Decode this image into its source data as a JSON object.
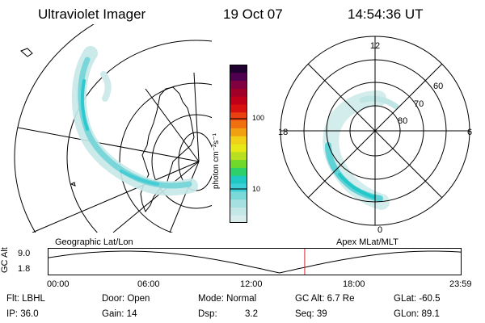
{
  "header": {
    "instrument": "Ultraviolet Imager",
    "date": "19 Oct 07",
    "time": "14:54:36 UT"
  },
  "colorbar": {
    "unit_label": "photon cm⁻²s⁻¹",
    "ticks": [
      "100",
      "10"
    ],
    "colors": [
      "#d8ecec",
      "#c3e6e6",
      "#a6e0e0",
      "#7ad8d8",
      "#3dd0d8",
      "#1fc8c0",
      "#2ed06a",
      "#6fd82a",
      "#b8e020",
      "#e8e818",
      "#f0d018",
      "#f0a010",
      "#f07010",
      "#e84010",
      "#d81010",
      "#c00018",
      "#a00028",
      "#800040",
      "#500050",
      "#200030"
    ]
  },
  "geographic_panel": {
    "label": "Geographic Lat/Lon"
  },
  "polar_panel": {
    "label": "Apex MLat/MLT",
    "mlt_labels": [
      "12",
      "18",
      "6",
      "0"
    ],
    "lat_labels": [
      "60",
      "70",
      "80"
    ]
  },
  "timeline": {
    "y_axis_label": "GC Alt",
    "y_ticks": [
      "9.0",
      "1.8"
    ],
    "x_ticks": [
      "00:00",
      "06:00",
      "12:00",
      "18:00",
      "23:59"
    ],
    "current_time_fraction": 0.621,
    "marker_color": "#d02020"
  },
  "info": {
    "filter": "Flt: LBHL",
    "door": "Door: Open",
    "mode": "Mode: Normal",
    "gc_alt": "GC Alt: 6.7 Re",
    "glat": "GLat: -60.5",
    "ip": "IP: 36.0",
    "gain": "Gain: 14",
    "dsp_label": "Dsp:",
    "dsp_value": "3.2",
    "seq": "Seq: 39",
    "glon": "GLon: 89.1"
  }
}
